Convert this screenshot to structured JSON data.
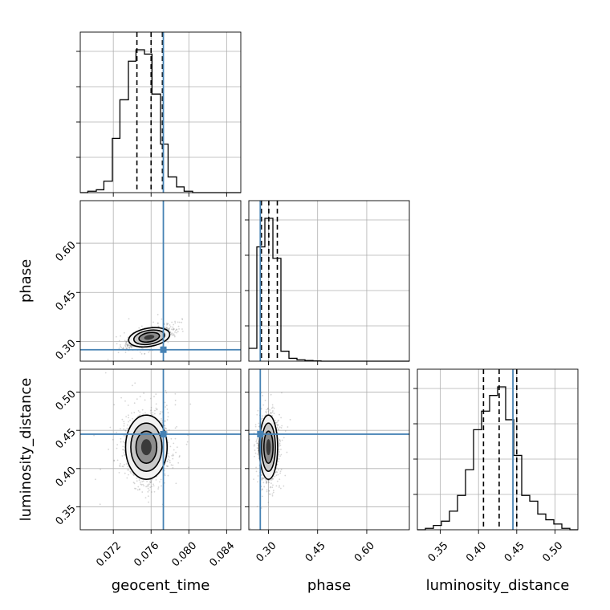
{
  "chart_data": {
    "type": "corner",
    "parameters": [
      "geocent_time",
      "phase",
      "luminosity_distance"
    ],
    "colors": {
      "truth": "#4682b4",
      "hist": "#000000",
      "grid": "#b0b0b0",
      "scatter": "#888888"
    },
    "truths": {
      "geocent_time": 0.0773,
      "phase": 0.275,
      "luminosity_distance": 0.445
    },
    "ranges": {
      "geocent_time": [
        0.0685,
        0.0855
      ],
      "phase": [
        0.24,
        0.73
      ],
      "luminosity_distance": [
        0.32,
        0.53
      ]
    },
    "ticks": {
      "geocent_time": [
        0.072,
        0.076,
        0.08,
        0.084
      ],
      "phase": [
        0.3,
        0.45,
        0.6
      ],
      "luminosity_distance": [
        0.35,
        0.4,
        0.45,
        0.5
      ]
    },
    "tick_labels": {
      "geocent_time": [
        "0.072",
        "0.076",
        "0.080",
        "0.084"
      ],
      "phase": [
        "0.30",
        "0.45",
        "0.60"
      ],
      "luminosity_distance": [
        "0.35",
        "0.40",
        "0.45",
        "0.50"
      ]
    },
    "hist_ticks": [
      0.22,
      0.44,
      0.66,
      0.88
    ],
    "histograms": {
      "geocent_time": {
        "edges": [
          0.0685,
          0.0693,
          0.0702,
          0.071,
          0.0719,
          0.0727,
          0.0736,
          0.0744,
          0.0753,
          0.0761,
          0.077,
          0.0778,
          0.0787,
          0.0795,
          0.0804,
          0.0812,
          0.0821,
          0.0829,
          0.0838,
          0.0846,
          0.0855
        ],
        "counts": [
          0.0,
          0.01,
          0.02,
          0.08,
          0.38,
          0.65,
          0.92,
          1.0,
          0.97,
          0.69,
          0.34,
          0.11,
          0.04,
          0.01,
          0.0,
          0.0,
          0.0,
          0.0,
          0.0,
          0.0
        ],
        "quantiles": [
          0.0745,
          0.076,
          0.0772
        ]
      },
      "phase": {
        "edges": [
          0.24,
          0.2645,
          0.289,
          0.3135,
          0.338,
          0.3625,
          0.387,
          0.4115,
          0.436,
          0.4605,
          0.485,
          0.5095,
          0.534,
          0.5585,
          0.583,
          0.6075,
          0.632,
          0.6565,
          0.681,
          0.7055,
          0.73
        ],
        "counts": [
          0.09,
          0.8,
          1.0,
          0.72,
          0.07,
          0.02,
          0.01,
          0.005,
          0.002,
          0.0,
          0.0,
          0.0,
          0.0,
          0.0,
          0.0,
          0.0,
          0.0,
          0.0,
          0.0,
          0.0
        ],
        "quantiles": [
          0.2785,
          0.301,
          0.327
        ]
      },
      "luminosity_distance": {
        "edges": [
          0.32,
          0.3305,
          0.341,
          0.3515,
          0.362,
          0.3725,
          0.383,
          0.3935,
          0.404,
          0.4145,
          0.425,
          0.4355,
          0.446,
          0.4565,
          0.467,
          0.4775,
          0.488,
          0.4985,
          0.509,
          0.5195,
          0.53
        ],
        "counts": [
          0.0,
          0.01,
          0.03,
          0.06,
          0.13,
          0.24,
          0.42,
          0.7,
          0.83,
          0.94,
          1.0,
          0.77,
          0.52,
          0.24,
          0.2,
          0.11,
          0.07,
          0.04,
          0.01,
          0.0
        ],
        "quantiles": [
          0.4065,
          0.427,
          0.45
        ]
      }
    },
    "pairs": [
      {
        "x": "geocent_time",
        "y": "phase",
        "center": [
          0.0758,
          0.313
        ],
        "sigma": [
          0.0011,
          0.014
        ],
        "rho": 0.65
      },
      {
        "x": "geocent_time",
        "y": "luminosity_distance",
        "center": [
          0.0755,
          0.428
        ],
        "sigma": [
          0.0011,
          0.021
        ],
        "rho": 0.0
      },
      {
        "x": "phase",
        "y": "luminosity_distance",
        "center": [
          0.3,
          0.428
        ],
        "sigma": [
          0.014,
          0.021
        ],
        "rho": 0.0
      }
    ],
    "contour_levels": [
      0.5,
      1.0,
      1.5,
      2.0
    ]
  }
}
